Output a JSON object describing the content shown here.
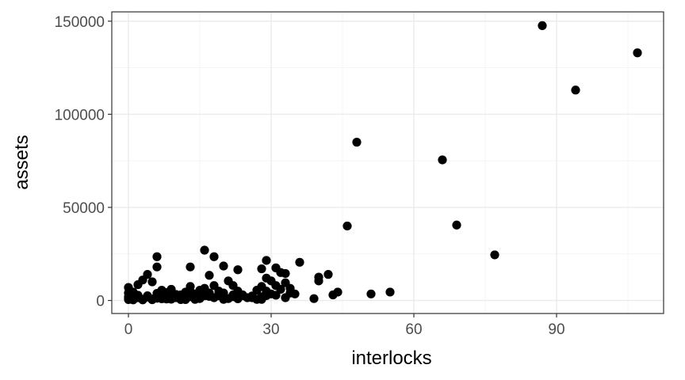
{
  "chart_data": {
    "type": "scatter",
    "title": "",
    "xlabel": "interlocks",
    "ylabel": "assets",
    "xlim": [
      -3.5,
      112.5
    ],
    "ylim": [
      -7000,
      155000
    ],
    "x_ticks": [
      0,
      30,
      60,
      90
    ],
    "x_tick_labels": [
      "0",
      "30",
      "60",
      "90"
    ],
    "y_ticks": [
      0,
      50000,
      100000,
      150000
    ],
    "y_tick_labels": [
      "0",
      "50000",
      "100000",
      "150000"
    ],
    "grid": true,
    "legend": "none",
    "colors": {
      "point": "#000000",
      "grid": "#ebebeb",
      "panel_border": "#333333"
    },
    "points": [
      [
        87,
        147600
      ],
      [
        107,
        133000
      ],
      [
        94,
        113000
      ],
      [
        48,
        85000
      ],
      [
        66,
        75500
      ],
      [
        46,
        40000
      ],
      [
        69,
        40500
      ],
      [
        77,
        24500
      ],
      [
        16,
        27000
      ],
      [
        18,
        23500
      ],
      [
        6,
        23500
      ],
      [
        13,
        18000
      ],
      [
        6,
        18000
      ],
      [
        20,
        18500
      ],
      [
        29,
        21500
      ],
      [
        31,
        17500
      ],
      [
        36,
        20500
      ],
      [
        33,
        14500
      ],
      [
        23,
        16500
      ],
      [
        17,
        13500
      ],
      [
        4,
        14000
      ],
      [
        3,
        11000
      ],
      [
        5,
        10000
      ],
      [
        2,
        8500
      ],
      [
        0,
        7000
      ],
      [
        0,
        4000
      ],
      [
        0,
        2000
      ],
      [
        0,
        1000
      ],
      [
        0,
        500
      ],
      [
        1,
        300
      ],
      [
        2,
        1500
      ],
      [
        3,
        600
      ],
      [
        4,
        2500
      ],
      [
        5,
        800
      ],
      [
        6,
        1200
      ],
      [
        7,
        3500
      ],
      [
        7,
        5500
      ],
      [
        8,
        800
      ],
      [
        9,
        2500
      ],
      [
        9,
        6000
      ],
      [
        10,
        1500
      ],
      [
        11,
        3000
      ],
      [
        12,
        500
      ],
      [
        12,
        4500
      ],
      [
        13,
        2000
      ],
      [
        13,
        7500
      ],
      [
        14,
        3500
      ],
      [
        15,
        1000
      ],
      [
        15,
        5500
      ],
      [
        16,
        2500
      ],
      [
        16,
        6500
      ],
      [
        17,
        4000
      ],
      [
        18,
        8000
      ],
      [
        18,
        1500
      ],
      [
        19,
        5000
      ],
      [
        19,
        2500
      ],
      [
        20,
        4000
      ],
      [
        21,
        1000
      ],
      [
        21,
        10500
      ],
      [
        22,
        8000
      ],
      [
        22,
        3000
      ],
      [
        23,
        5000
      ],
      [
        24,
        2500
      ],
      [
        25,
        1500
      ],
      [
        27,
        5500
      ],
      [
        28,
        7500
      ],
      [
        28,
        17000
      ],
      [
        28,
        2000
      ],
      [
        29,
        12000
      ],
      [
        29,
        5000
      ],
      [
        30,
        10500
      ],
      [
        30,
        3500
      ],
      [
        31,
        8000
      ],
      [
        32,
        6000
      ],
      [
        32,
        15000
      ],
      [
        33,
        9500
      ],
      [
        34,
        6500
      ],
      [
        34,
        4000
      ],
      [
        35,
        3500
      ],
      [
        33,
        1500
      ],
      [
        28,
        600
      ],
      [
        39,
        1000
      ],
      [
        40,
        12500
      ],
      [
        40,
        10500
      ],
      [
        42,
        14000
      ],
      [
        43,
        3000
      ],
      [
        44,
        4500
      ],
      [
        51,
        3500
      ],
      [
        55,
        4500
      ],
      [
        26,
        1500
      ],
      [
        24,
        3000
      ],
      [
        14,
        600
      ],
      [
        11,
        500
      ],
      [
        8,
        1800
      ],
      [
        2,
        2800
      ],
      [
        1,
        4500
      ],
      [
        6,
        3800
      ],
      [
        10,
        3200
      ],
      [
        12,
        1800
      ],
      [
        17,
        2200
      ],
      [
        20,
        600
      ],
      [
        23,
        900
      ],
      [
        27,
        600
      ],
      [
        29,
        2600
      ],
      [
        3,
        300
      ],
      [
        5,
        400
      ],
      [
        7,
        900
      ],
      [
        4,
        1800
      ],
      [
        9,
        700
      ],
      [
        13,
        4800
      ],
      [
        16,
        4200
      ],
      [
        19,
        3300
      ],
      [
        22,
        2000
      ],
      [
        26,
        2400
      ],
      [
        31,
        2800
      ],
      [
        15,
        2800
      ],
      [
        11,
        1700
      ],
      [
        8,
        4200
      ]
    ]
  }
}
